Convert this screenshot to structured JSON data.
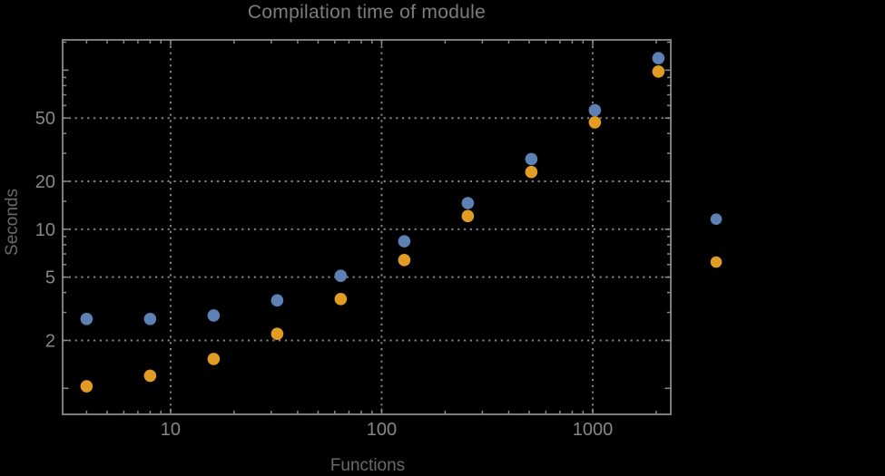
{
  "chart_data": {
    "type": "scatter",
    "title": "Compilation time of module",
    "xlabel": "Functions",
    "ylabel": "Seconds",
    "x_scale": "log",
    "y_scale": "log",
    "xlim": [
      3.08,
      2344
    ],
    "ylim": [
      0.686,
      155
    ],
    "grid": {
      "style": "dotted",
      "x_values": [
        10,
        100,
        1000
      ],
      "y_values": [
        2,
        5,
        10,
        20,
        50
      ]
    },
    "x_axis": {
      "major_ticks": [
        {
          "value": 10,
          "label": "10"
        },
        {
          "value": 100,
          "label": "100"
        },
        {
          "value": 1000,
          "label": "1000"
        }
      ],
      "minor_ticks": [
        4,
        5,
        6,
        7,
        8,
        9,
        20,
        30,
        40,
        50,
        60,
        70,
        80,
        90,
        200,
        300,
        400,
        500,
        600,
        700,
        800,
        900,
        2000
      ]
    },
    "y_axis": {
      "major_ticks": [
        {
          "value": 2,
          "label": "2"
        },
        {
          "value": 5,
          "label": "5"
        },
        {
          "value": 10,
          "label": "10"
        },
        {
          "value": 20,
          "label": "20"
        },
        {
          "value": 50,
          "label": "50"
        }
      ],
      "unlabeled_major_ticks": [
        1,
        100
      ],
      "minor_ticks": [
        3,
        4,
        6,
        7,
        8,
        9,
        15,
        30,
        40,
        60,
        70,
        80,
        90,
        150
      ]
    },
    "series": [
      {
        "name": "series-1",
        "color": "#5e81b5",
        "points": [
          [
            4,
            2.73
          ],
          [
            8,
            2.73
          ],
          [
            16,
            2.87
          ],
          [
            32,
            3.57
          ],
          [
            64,
            5.1
          ],
          [
            128,
            8.4
          ],
          [
            256,
            14.6
          ],
          [
            512,
            27.6
          ],
          [
            1024,
            56
          ],
          [
            2048,
            119
          ]
        ]
      },
      {
        "name": "series-2",
        "color": "#e19c24",
        "points": [
          [
            4,
            1.03
          ],
          [
            8,
            1.2
          ],
          [
            16,
            1.53
          ],
          [
            32,
            2.2
          ],
          [
            64,
            3.64
          ],
          [
            128,
            6.4
          ],
          [
            256,
            12.1
          ],
          [
            512,
            22.9
          ],
          [
            1024,
            47
          ],
          [
            2048,
            98
          ]
        ]
      }
    ],
    "legend": {
      "position": "right-outside",
      "labels_visible": false,
      "entries": [
        {
          "series": "series-1",
          "color": "#5e81b5",
          "label": ""
        },
        {
          "series": "series-2",
          "color": "#e19c24",
          "label": ""
        }
      ]
    }
  },
  "colors": {
    "background": "#000000",
    "frame": "#8a8a8a",
    "grid": "#828282",
    "tick_labels": "#878787",
    "title": "#7d7d7d",
    "axis_labels": "#696969"
  }
}
